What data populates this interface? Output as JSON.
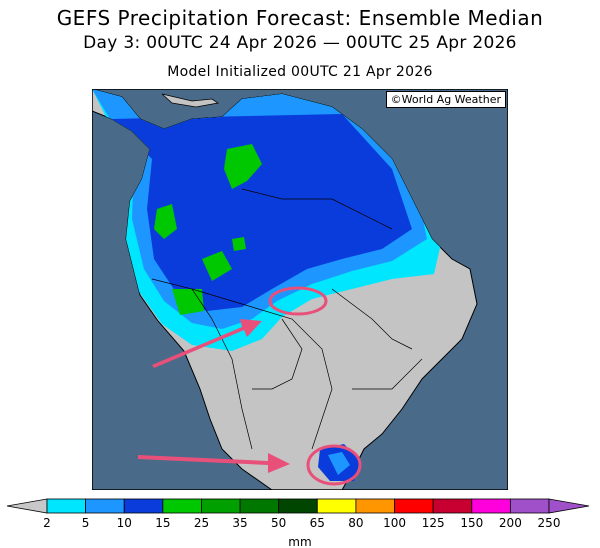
{
  "header": {
    "title": "GEFS Precipitation Forecast: Ensemble Median",
    "period": "Day 3: 00UTC 24 Apr 2026 — 00UTC 25 Apr 2026",
    "init": "Model Initialized 00UTC 21 Apr 2026"
  },
  "credit": "©World Ag Weather",
  "colorbar": {
    "unit": "mm",
    "ticks": [
      "2",
      "5",
      "10",
      "15",
      "25",
      "35",
      "50",
      "65",
      "80",
      "100",
      "125",
      "150",
      "200",
      "250"
    ],
    "colors": [
      "#00e6ff",
      "#1e96ff",
      "#0a3cdc",
      "#00c800",
      "#00a000",
      "#007800",
      "#004600",
      "#ffff00",
      "#ff9600",
      "#ff0000",
      "#c80032",
      "#ff00dc",
      "#a050c8"
    ],
    "under_color": "#c8c8c8",
    "over_color": "#a050c8"
  },
  "colors": {
    "ocean": "#4a6a8a",
    "land": "#c4c4c4",
    "annotation": "#e8507a"
  },
  "annotations": {
    "circles": 2,
    "arrows": 2
  }
}
